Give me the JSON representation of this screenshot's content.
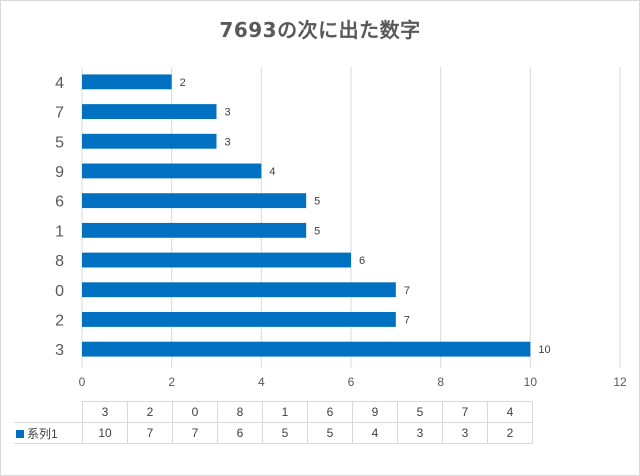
{
  "title": "7693の次に出た数字",
  "colors": {
    "bar": "#0070c0",
    "grid": "#d9d9d9",
    "text": "#595959"
  },
  "chart_data": {
    "type": "bar",
    "orientation": "horizontal",
    "title": "7693の次に出た数字",
    "categories": [
      "4",
      "7",
      "5",
      "9",
      "6",
      "1",
      "8",
      "0",
      "2",
      "3"
    ],
    "series": [
      {
        "name": "系列1",
        "values": [
          2,
          3,
          3,
          4,
          5,
          5,
          6,
          7,
          7,
          10
        ]
      }
    ],
    "xlim": [
      0,
      12
    ],
    "xticks": [
      "0",
      "2",
      "4",
      "6",
      "8",
      "10",
      "12"
    ],
    "grid": true,
    "data_labels": true,
    "data_table": {
      "header": [
        "3",
        "2",
        "0",
        "8",
        "1",
        "6",
        "9",
        "5",
        "7",
        "4"
      ],
      "series_label": "系列1",
      "values": [
        "10",
        "7",
        "7",
        "6",
        "5",
        "5",
        "4",
        "3",
        "3",
        "2"
      ]
    }
  }
}
